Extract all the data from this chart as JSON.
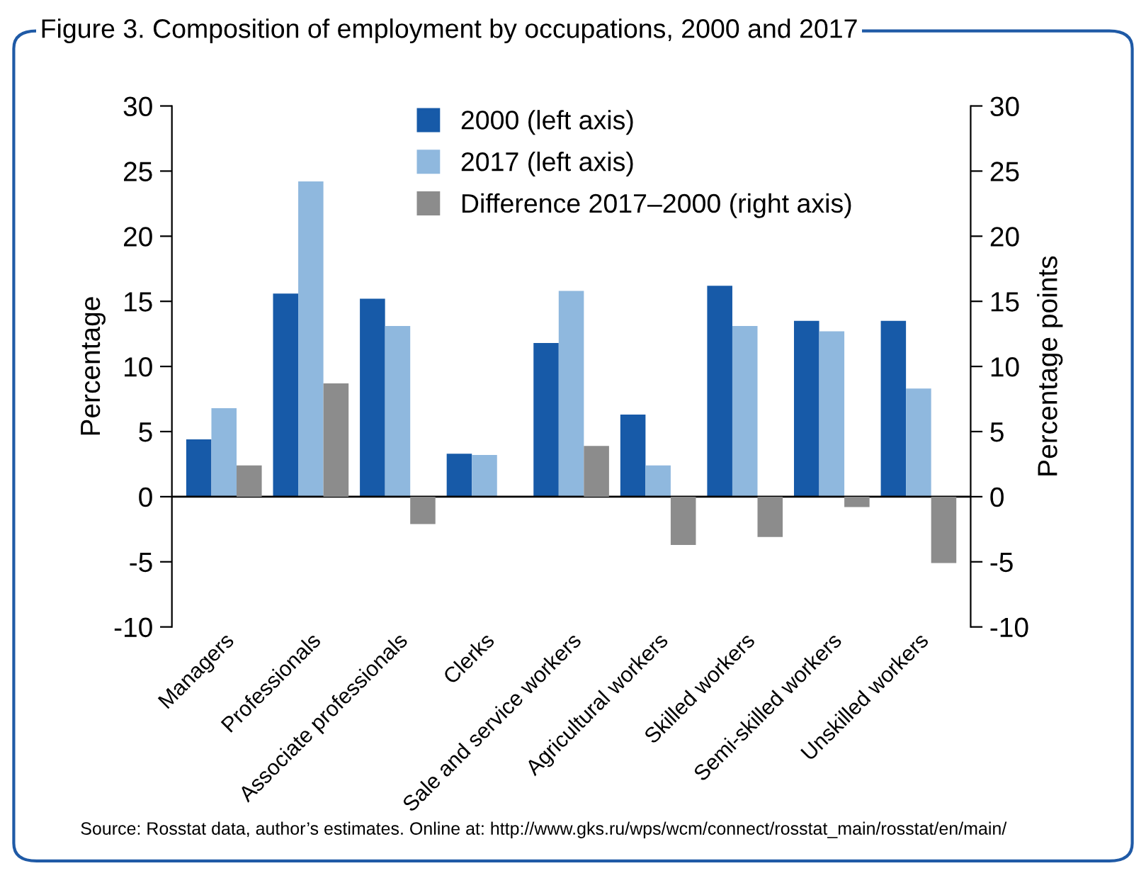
{
  "chart_data": {
    "type": "bar",
    "title": "Figure 3. Composition of employment by occupations, 2000 and 2017",
    "categories": [
      "Managers",
      "Professionals",
      "Associate professionals",
      "Clerks",
      "Sale and service workers",
      "Agricultural workers",
      "Skilled workers",
      "Semi-skilled workers",
      "Unskilled workers"
    ],
    "series": [
      {
        "name": "2000 (left axis)",
        "color": "#175aa8",
        "values": [
          4.4,
          15.6,
          15.2,
          3.3,
          11.8,
          6.3,
          16.2,
          13.5,
          13.5
        ]
      },
      {
        "name": "2017 (left axis)",
        "color": "#8fb8de",
        "values": [
          6.8,
          24.2,
          13.1,
          3.2,
          15.8,
          2.4,
          13.1,
          12.7,
          8.3
        ]
      },
      {
        "name": "Difference 2017–2000 (right axis)",
        "color": "#8c8c8c",
        "axis": "y2",
        "values": [
          2.4,
          8.7,
          -2.1,
          0,
          3.9,
          -3.7,
          -3.1,
          -0.8,
          -5.1
        ]
      }
    ],
    "ylabel": "Percentage",
    "y2label": "Percentage points",
    "ylim": [
      -10,
      30
    ],
    "yticks": [
      -10,
      -5,
      0,
      5,
      10,
      15,
      20,
      25,
      30
    ],
    "y2lim": [
      -10,
      30
    ],
    "y2ticks": [
      -10,
      -5,
      0,
      5,
      10,
      15,
      20,
      25,
      30
    ],
    "legend": "top",
    "grid": false,
    "ref_lines": [
      {
        "axis": "y",
        "value": 0,
        "color": "#000000"
      }
    ],
    "annotations": [
      "Source: Rosstat data, author’s estimates. Online at: http://www.gks.ru/wps/wcm/connect/rosstat_main/rosstat/en/main/"
    ]
  }
}
